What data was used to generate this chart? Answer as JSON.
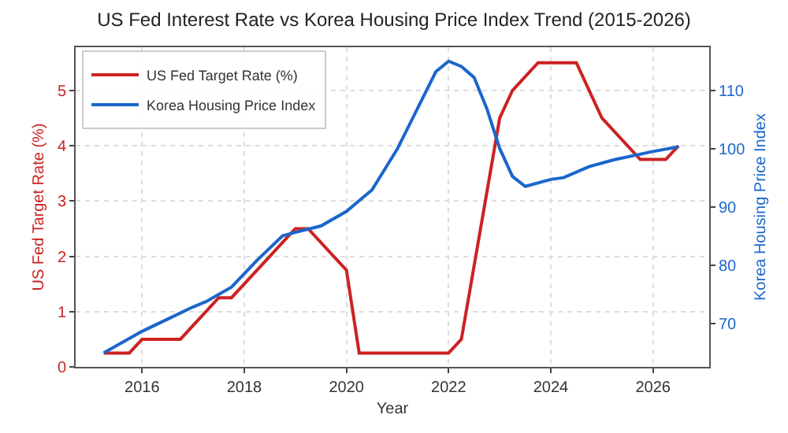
{
  "chart_data": {
    "type": "line",
    "title": "US Fed Interest Rate vs Korea Housing Price Index Trend (2015-2026)",
    "xlabel": "Year",
    "ylabel": "US Fed Target Rate (%)",
    "y2label": "Korea Housing Price Index",
    "series": [
      {
        "name": "US Fed Target Rate (%)",
        "color": "#cc2222",
        "x": [
          2015.25,
          2015.75,
          2016.0,
          2016.75,
          2017.5,
          2017.75,
          2018.25,
          2018.5,
          2018.75,
          2019.0,
          2019.25,
          2020.0,
          2020.25,
          2022.0,
          2022.25,
          2023.0,
          2023.25,
          2023.75,
          2024.5,
          2025.0,
          2025.75,
          2026.25,
          2026.5
        ],
        "values": [
          0.25,
          0.25,
          0.5,
          0.5,
          1.25,
          1.25,
          1.75,
          2.0,
          2.25,
          2.5,
          2.5,
          1.75,
          0.25,
          0.25,
          0.5,
          4.5,
          5.0,
          5.5,
          5.5,
          4.5,
          3.75,
          3.75,
          4.0
        ]
      },
      {
        "name": "Korea Housing Price Index",
        "color": "#1a66cc",
        "axis": "y2",
        "x": [
          2015.25,
          2016.0,
          2016.5,
          2017.0,
          2017.25,
          2017.75,
          2018.25,
          2018.75,
          2019.0,
          2019.5,
          2020.0,
          2020.5,
          2021.0,
          2021.75,
          2022.0,
          2022.25,
          2022.5,
          2022.75,
          2023.0,
          2023.25,
          2023.5,
          2024.0,
          2024.25,
          2024.75,
          2025.25,
          2026.0,
          2026.5
        ],
        "values": [
          65.0,
          68.7,
          70.8,
          72.9,
          73.8,
          76.3,
          80.9,
          85.1,
          85.7,
          86.8,
          89.3,
          93.0,
          100.1,
          113.3,
          115.1,
          114.2,
          112.3,
          106.9,
          100.1,
          95.3,
          93.6,
          94.8,
          95.1,
          97.0,
          98.2,
          99.6,
          100.4
        ]
      }
    ],
    "xlim": [
      2014.7,
      2027.1
    ],
    "xticks": [
      2016,
      2018,
      2020,
      2022,
      2024,
      2026
    ],
    "ylim": [
      0,
      5.78
    ],
    "yticks": [
      0,
      1,
      2,
      3,
      4,
      5
    ],
    "y2lim": [
      62.6,
      117.5
    ],
    "y2ticks": [
      70,
      80,
      90,
      100,
      110
    ],
    "grid": true,
    "legend": "top left",
    "marker": "none",
    "line_style": "solid"
  }
}
